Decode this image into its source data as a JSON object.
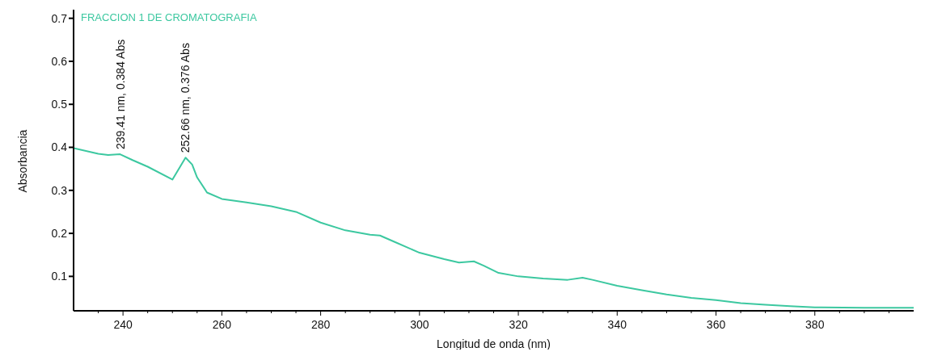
{
  "chart_data": {
    "type": "line",
    "title": "FRACCION 1 DE CROMATOGRAFIA",
    "xlabel": "Longitud de onda (nm)",
    "ylabel": "Absorbancia",
    "x": [
      230,
      235,
      237,
      239.41,
      242,
      245,
      250,
      252.66,
      254,
      255,
      257,
      260,
      265,
      270,
      275,
      280,
      285,
      290,
      292,
      295,
      300,
      305,
      308,
      311,
      313,
      316,
      320,
      325,
      330,
      333,
      335,
      340,
      345,
      350,
      355,
      360,
      365,
      370,
      375,
      380,
      390,
      400
    ],
    "series": [
      {
        "color": "#3cc8a0",
        "values": [
          0.398,
          0.385,
          0.382,
          0.384,
          0.37,
          0.355,
          0.325,
          0.376,
          0.36,
          0.33,
          0.295,
          0.28,
          0.272,
          0.263,
          0.25,
          0.225,
          0.207,
          0.197,
          0.195,
          0.18,
          0.155,
          0.14,
          0.132,
          0.135,
          0.125,
          0.108,
          0.1,
          0.095,
          0.092,
          0.097,
          0.092,
          0.078,
          0.068,
          0.058,
          0.05,
          0.045,
          0.038,
          0.034,
          0.031,
          0.028,
          0.027,
          0.027
        ]
      }
    ],
    "xlim": [
      230,
      400
    ],
    "ylim": [
      0.02,
      0.72
    ],
    "xticks": [
      {
        "value": 235,
        "label": null
      },
      240,
      {
        "value": 245,
        "label": null
      },
      {
        "value": 250,
        "label": null
      },
      {
        "value": 255,
        "label": null
      },
      260,
      {
        "value": 265,
        "label": null
      },
      {
        "value": 270,
        "label": null
      },
      {
        "value": 275,
        "label": null
      },
      280,
      {
        "value": 285,
        "label": null
      },
      {
        "value": 290,
        "label": null
      },
      {
        "value": 295,
        "label": null
      },
      300,
      {
        "value": 305,
        "label": null
      },
      {
        "value": 310,
        "label": null
      },
      {
        "value": 315,
        "label": null
      },
      320,
      {
        "value": 325,
        "label": null
      },
      {
        "value": 330,
        "label": null
      },
      {
        "value": 335,
        "label": null
      },
      340,
      {
        "value": 345,
        "label": null
      },
      {
        "value": 350,
        "label": null
      },
      {
        "value": 355,
        "label": null
      },
      360,
      {
        "value": 365,
        "label": null
      },
      {
        "value": 370,
        "label": null
      },
      {
        "value": 375,
        "label": null
      },
      380,
      {
        "value": 385,
        "label": null
      },
      {
        "value": 390,
        "label": null
      },
      {
        "value": 395,
        "label": null
      }
    ],
    "yticks": [
      0.1,
      0.2,
      0.3,
      0.4,
      0.5,
      0.6,
      0.7
    ],
    "annotations": [
      {
        "text": "239.41 nm, 0.384 Abs",
        "x": 239.41,
        "y": 0.384
      },
      {
        "text": "252.66 nm, 0.376 Abs",
        "x": 252.66,
        "y": 0.376
      }
    ],
    "grid": false,
    "legend": false,
    "marker": "none",
    "line_style": "solid"
  }
}
